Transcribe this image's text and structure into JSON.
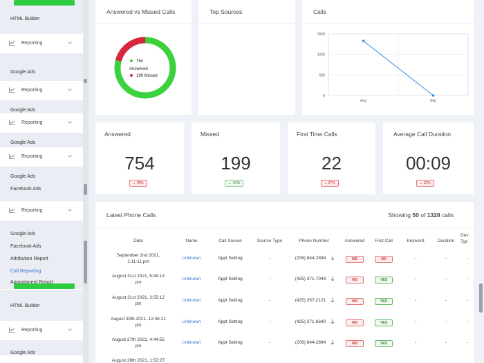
{
  "sidebar": {
    "items": [
      {
        "label": "HTML Builder"
      },
      {
        "label": "Reporting"
      },
      {
        "label": "Google Ads"
      },
      {
        "label": "Reporting"
      },
      {
        "label": "Google Ads"
      },
      {
        "label": "Reporting"
      },
      {
        "label": "Google Ads"
      },
      {
        "label": "Reporting"
      },
      {
        "label": "Google Ads"
      },
      {
        "label": "Facebook Ads"
      },
      {
        "label": "Reporting"
      },
      {
        "label": "Google Ads"
      },
      {
        "label": "Facebook Ads"
      },
      {
        "label": "Attribution Report"
      },
      {
        "label": "Call Reporting"
      },
      {
        "label": "Appointment Report"
      },
      {
        "label": "HTML Builder"
      },
      {
        "label": "Reporting"
      },
      {
        "label": "Google Ads"
      }
    ]
  },
  "cards": {
    "answered_vs_missed": {
      "title": "Answered vs Missed Calls",
      "answered_value": "754",
      "answered_label": "Answered",
      "missed_text": "199 Missed",
      "answered_color": "#3bd23d",
      "missed_color": "#d7263d"
    },
    "top_sources": {
      "title": "Top Sources"
    },
    "calls": {
      "title": "Calls"
    }
  },
  "chart_data": {
    "type": "line",
    "x": [
      "Aug",
      "Sep"
    ],
    "series": [
      {
        "values": [
          1328,
          0
        ]
      }
    ],
    "y_ticks": [
      "1500",
      "1000",
      "500",
      "0"
    ],
    "ylim": [
      0,
      1500
    ],
    "grid": true,
    "color": "#3b8ee8"
  },
  "stats": [
    {
      "title": "Answered",
      "value": "754",
      "badge": "48%",
      "badge_dir": "down",
      "color": "red"
    },
    {
      "title": "Missed",
      "value": "199",
      "badge": "-31%",
      "badge_dir": "down",
      "color": "green"
    },
    {
      "title": "First Time Calls",
      "value": "22",
      "badge": "27%",
      "badge_dir": "down",
      "color": "red"
    },
    {
      "title": "Average Call Duration",
      "value": "00:09",
      "badge": "22%",
      "badge_dir": "down",
      "color": "red"
    }
  ],
  "latest": {
    "title": "Latest Phone Calls",
    "showing_prefix": "Showing",
    "showing_count": "50",
    "showing_of": "of",
    "showing_total": "1328",
    "showing_suffix": "calls",
    "columns": [
      "Date",
      "Name",
      "Call Source",
      "Source Type",
      "Phone Number",
      "Answered",
      "First Call",
      "Keyword",
      "Duration",
      "Dev Typ"
    ],
    "rows": [
      {
        "date_l1": "September 2nd 2021,",
        "date_l2": "1:11:11 pm",
        "name": "Unknown",
        "source": "Appt Setting",
        "type": "-",
        "phone": "(206) 844-2894",
        "answered": "NO",
        "first": "NO",
        "keyword": "-",
        "duration": "-",
        "device": "-"
      },
      {
        "date_l1": "August 31st 2021, 5:49:13",
        "date_l2": "pm",
        "name": "Unknown",
        "source": "Appt Setting",
        "type": "-",
        "phone": "(425) 371-7044",
        "answered": "NO",
        "first": "YES",
        "keyword": "-",
        "duration": "-",
        "device": "-"
      },
      {
        "date_l1": "August 31st 2021, 3:55:12",
        "date_l2": "pm",
        "name": "Unknown",
        "source": "Appt Setting",
        "type": "-",
        "phone": "(425) 357-2121",
        "answered": "NO",
        "first": "YES",
        "keyword": "-",
        "duration": "-",
        "device": "-"
      },
      {
        "date_l1": "August 30th 2021, 12:46:21",
        "date_l2": "pm",
        "name": "Unknown",
        "source": "Appt Setting",
        "type": "-",
        "phone": "(425) 371-6640",
        "answered": "NO",
        "first": "YES",
        "keyword": "-",
        "duration": "-",
        "device": "-"
      },
      {
        "date_l1": "August 27th 2021, 4:44:55",
        "date_l2": "pm",
        "name": "Unknown",
        "source": "Appt Setting",
        "type": "-",
        "phone": "(206) 844-2894",
        "answered": "NO",
        "first": "YES",
        "keyword": "-",
        "duration": "-",
        "device": "-"
      },
      {
        "date_l1": "August 26th 2021, 1:52:27",
        "date_l2": "",
        "name": "",
        "source": "",
        "type": "",
        "phone": "",
        "answered": "",
        "first": "",
        "keyword": "",
        "duration": "",
        "device": ""
      }
    ]
  }
}
